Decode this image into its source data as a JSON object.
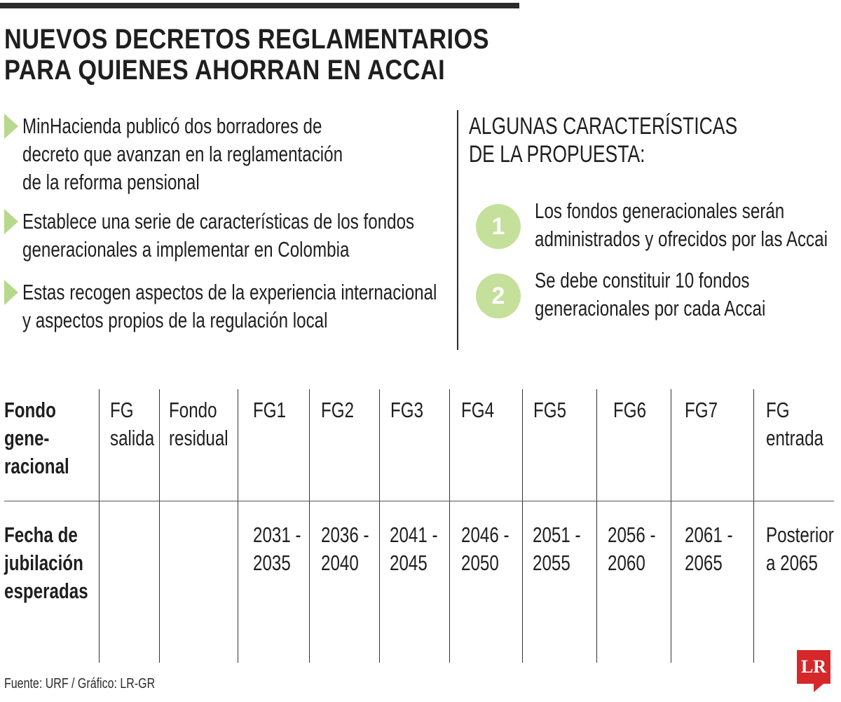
{
  "headline": {
    "line1": "NUEVOS DECRETOS REGLAMENTARIOS",
    "line2": "PARA QUIENES AHORRAN EN ACCAI"
  },
  "bullets": [
    {
      "lines": [
        "MinHacienda publicó dos borradores de",
        "decreto que avanzan en la reglamentación",
        "de la reforma pensional"
      ]
    },
    {
      "lines": [
        "Establece una serie de características de los fondos",
        "generacionales a implementar en Colombia"
      ]
    },
    {
      "lines": [
        "Estas recogen aspectos de la experiencia internacional",
        "y aspectos propios de la regulación local"
      ]
    }
  ],
  "features": {
    "title_line1": "ALGUNAS CARACTERÍSTICAS",
    "title_line2": "DE LA PROPUESTA:",
    "items": [
      {
        "number": "1",
        "lines": [
          "Los fondos generacionales serán",
          "administrados y ofrecidos por las Accai"
        ]
      },
      {
        "number": "2",
        "lines": [
          "Se debe constituir 10 fondos",
          "generacionales por cada Accai"
        ]
      }
    ]
  },
  "table": {
    "header_label": [
      "Fondo",
      "gene-",
      "racional"
    ],
    "row_label": [
      "Fecha de",
      "jubilación",
      "esperadas"
    ],
    "columns": [
      {
        "name": [
          "FG",
          "salida"
        ],
        "date": [
          "",
          ""
        ]
      },
      {
        "name": [
          "Fondo",
          "residual"
        ],
        "date": [
          "",
          ""
        ]
      },
      {
        "name": [
          "FG1",
          ""
        ],
        "date": [
          "2031 -",
          "2035"
        ]
      },
      {
        "name": [
          "FG2",
          ""
        ],
        "date": [
          "2036 -",
          "2040"
        ]
      },
      {
        "name": [
          "FG3",
          ""
        ],
        "date": [
          "2041 -",
          "2045"
        ]
      },
      {
        "name": [
          "FG4",
          ""
        ],
        "date": [
          "2046 -",
          "2050"
        ]
      },
      {
        "name": [
          "FG5",
          ""
        ],
        "date": [
          "2051 -",
          "2055"
        ]
      },
      {
        "name": [
          "FG6",
          ""
        ],
        "date": [
          "2056 -",
          "2060"
        ]
      },
      {
        "name": [
          "FG7",
          ""
        ],
        "date": [
          "2061 -",
          "2065"
        ]
      },
      {
        "name": [
          "FG",
          "entrada"
        ],
        "date": [
          "Posterior",
          "a 2065"
        ]
      }
    ]
  },
  "source": "Fuente: URF / Gráfico: LR-GR",
  "logo": "LR",
  "colors": {
    "accent_green": "#b7d98b",
    "circle_green": "#c5e09a",
    "logo_red": "#d6282b"
  }
}
